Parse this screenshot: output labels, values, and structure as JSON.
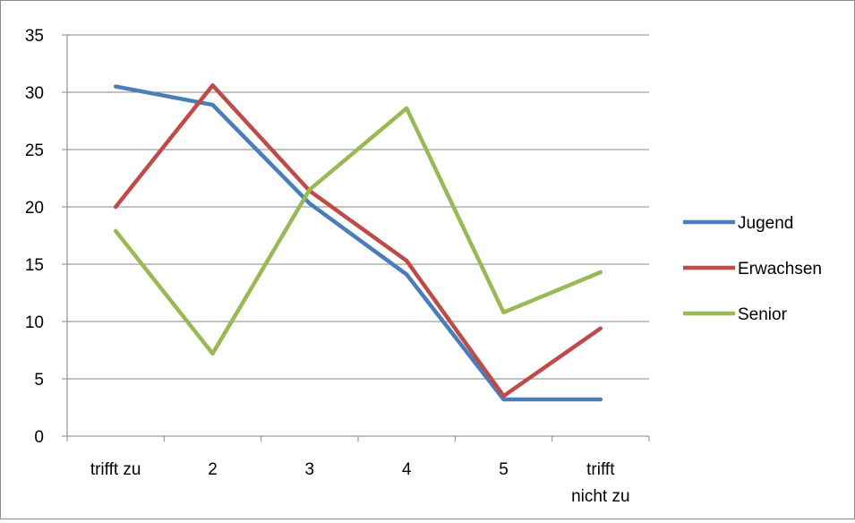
{
  "chart_data": {
    "type": "line",
    "categories": [
      [
        "trifft zu"
      ],
      [
        "2"
      ],
      [
        "3"
      ],
      [
        "4"
      ],
      [
        "5"
      ],
      [
        "trifft",
        "nicht zu"
      ]
    ],
    "ylim": [
      0,
      35
    ],
    "yticks": [
      0,
      5,
      10,
      15,
      20,
      25,
      30,
      35
    ],
    "grid": "horizontal",
    "legend_position": "right",
    "series": [
      {
        "name": "Jugend",
        "color": "#4a7ebb",
        "values": [
          30.5,
          28.9,
          20.3,
          14.1,
          3.2,
          3.2
        ]
      },
      {
        "name": "Erwachsen",
        "color": "#be4b48",
        "values": [
          20.0,
          30.6,
          21.4,
          15.3,
          3.5,
          9.4
        ]
      },
      {
        "name": "Senior",
        "color": "#98b954",
        "values": [
          17.9,
          7.2,
          21.5,
          28.6,
          10.8,
          14.3
        ]
      }
    ]
  }
}
